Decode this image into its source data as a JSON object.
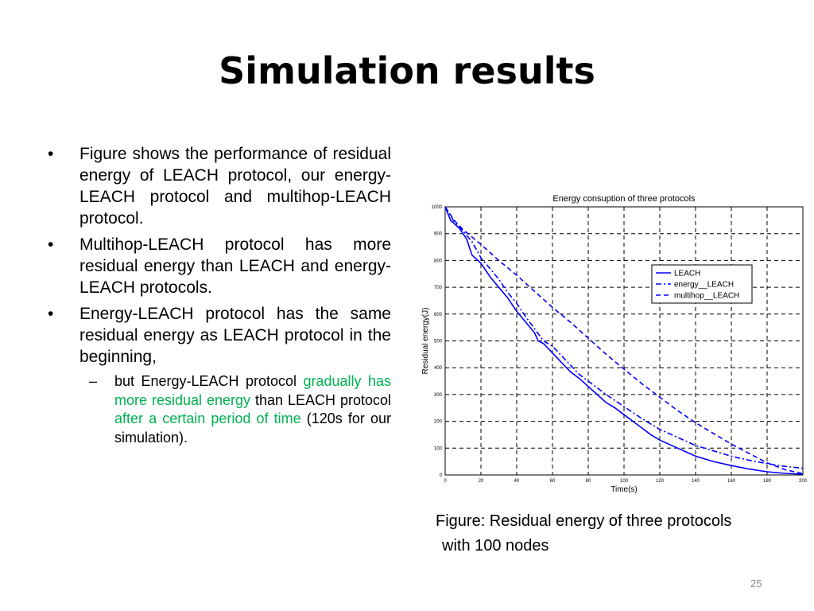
{
  "slide": {
    "title": "Simulation results",
    "page_number": "25",
    "bullets": [
      {
        "text": "Figure shows the performance of residual energy of LEACH protocol, our energy-LEACH protocol and multihop-LEACH protocol."
      },
      {
        "text": "Multihop-LEACH protocol has more residual energy than LEACH and energy-LEACH protocols."
      },
      {
        "text": "Energy-LEACH protocol has the same residual energy as LEACH protocol in the beginning,"
      }
    ],
    "sub_bullet": {
      "part1": "but Energy-LEACH protocol ",
      "part2_green": "gradually has more residual energy",
      "part3": " than LEACH protocol ",
      "part4_green": "after a certain period of time",
      "part5": " (120s for our simulation)."
    },
    "caption_line1": "Figure: Residual energy of three protocols",
    "caption_line2": "with 100  nodes",
    "accent_green": "#00b050",
    "bullet_glyph": "•",
    "dash_glyph": "–"
  },
  "chart_data": {
    "type": "line",
    "title": "Energy consuption of three protocols",
    "xlabel": "Time(s)",
    "ylabel": "Residual energy(J)",
    "xlim": [
      0,
      200
    ],
    "ylim": [
      0,
      1000
    ],
    "xticks": [
      "0",
      "20",
      "40",
      "60",
      "80",
      "100",
      "120",
      "140",
      "160",
      "180",
      "200"
    ],
    "yticks": [
      "0",
      "100",
      "200",
      "300",
      "400",
      "500",
      "600",
      "700",
      "800",
      "900",
      "1000"
    ],
    "grid": true,
    "legend_position": "center-right",
    "series": [
      {
        "name": "LEACH",
        "style": "solid",
        "color": "#0000ff",
        "x": [
          0,
          3,
          8,
          12,
          15,
          20,
          25,
          30,
          35,
          40,
          45,
          50,
          52,
          55,
          60,
          65,
          70,
          75,
          80,
          85,
          90,
          95,
          100,
          105,
          110,
          115,
          120,
          125,
          130,
          135,
          140,
          150,
          160,
          170,
          180,
          190,
          200
        ],
        "y": [
          1000,
          950,
          920,
          880,
          820,
          790,
          740,
          700,
          660,
          610,
          570,
          530,
          500,
          490,
          455,
          420,
          385,
          360,
          330,
          300,
          270,
          250,
          225,
          200,
          175,
          150,
          130,
          115,
          100,
          85,
          70,
          50,
          35,
          22,
          12,
          6,
          3
        ]
      },
      {
        "name": "energy__LEACH",
        "style": "dashdot",
        "color": "#0000ff",
        "x": [
          0,
          5,
          10,
          15,
          20,
          25,
          30,
          35,
          40,
          45,
          50,
          55,
          60,
          65,
          70,
          75,
          80,
          90,
          100,
          110,
          120,
          130,
          140,
          150,
          160,
          170,
          180,
          190,
          200
        ],
        "y": [
          1000,
          945,
          910,
          870,
          810,
          770,
          730,
          680,
          640,
          590,
          545,
          500,
          480,
          445,
          410,
          375,
          350,
          300,
          255,
          210,
          170,
          140,
          110,
          90,
          70,
          55,
          42,
          32,
          25
        ]
      },
      {
        "name": "multihop__LEACH",
        "style": "dashed",
        "color": "#0000ff",
        "x": [
          0,
          5,
          10,
          20,
          30,
          40,
          50,
          60,
          70,
          80,
          90,
          100,
          110,
          120,
          130,
          140,
          150,
          160,
          170,
          180,
          190,
          200
        ],
        "y": [
          1000,
          950,
          915,
          860,
          800,
          745,
          685,
          625,
          570,
          510,
          450,
          395,
          340,
          290,
          240,
          195,
          155,
          115,
          80,
          45,
          20,
          5
        ]
      }
    ]
  }
}
